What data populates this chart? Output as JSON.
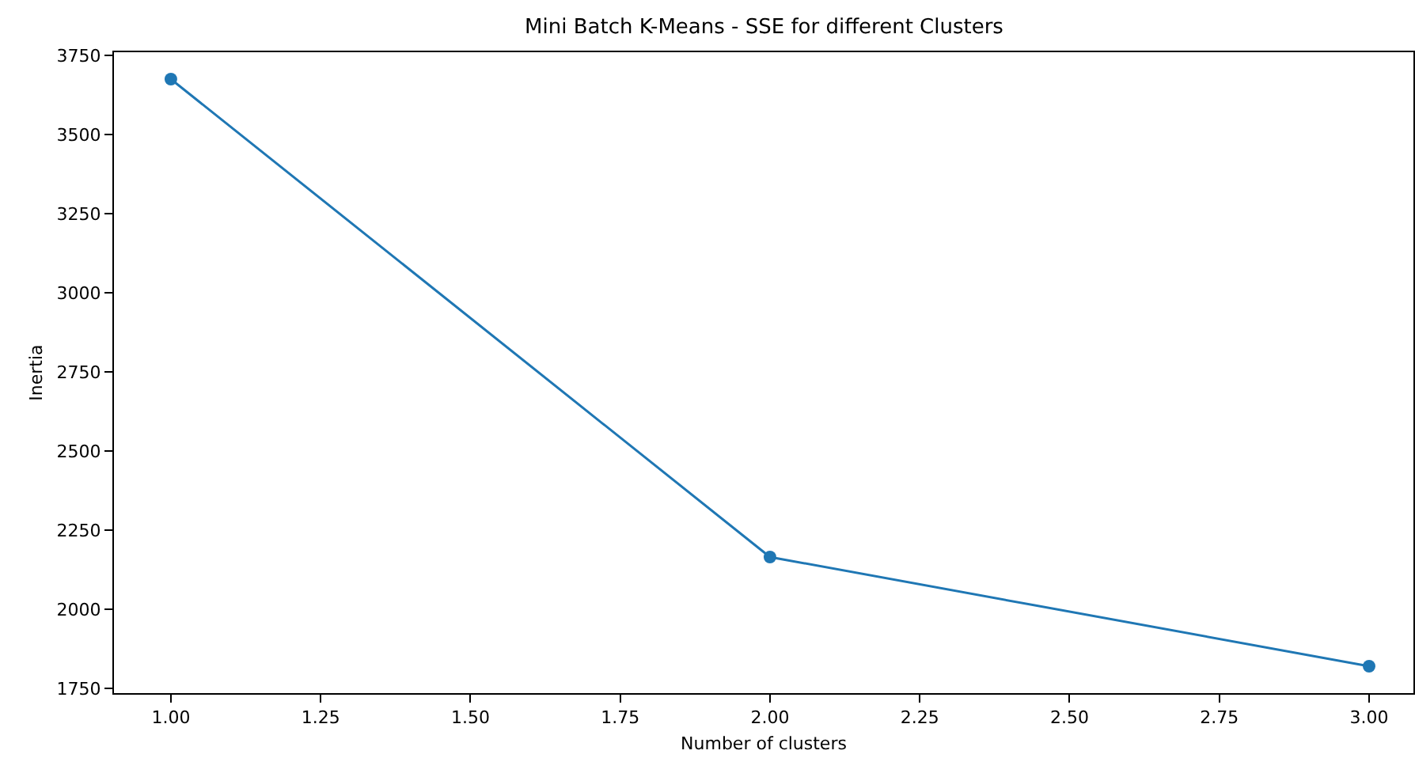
{
  "chart_data": {
    "type": "line",
    "title": "Mini Batch K-Means - SSE for different Clusters",
    "xlabel": "Number of clusters",
    "ylabel": "Inertia",
    "x": [
      1,
      2,
      3
    ],
    "series": [
      {
        "color": "#1f77b4",
        "values": [
          3675,
          2165,
          1820
        ]
      }
    ],
    "marker": "circle",
    "line_style": "solid",
    "xlim": [
      0.905,
      3.074
    ],
    "xticks": [
      {
        "value": 1,
        "label": "1.00"
      },
      {
        "value": 1.25,
        "label": "1.25"
      },
      {
        "value": 1.5,
        "label": "1.50"
      },
      {
        "value": 1.75,
        "label": "1.75"
      },
      {
        "value": 2,
        "label": "2.00"
      },
      {
        "value": 2.25,
        "label": "2.25"
      },
      {
        "value": 2.5,
        "label": "2.50"
      },
      {
        "value": 2.75,
        "label": "2.75"
      },
      {
        "value": 3,
        "label": "3.00"
      }
    ],
    "ylim": [
      1735,
      3760
    ],
    "yticks": [
      1750,
      2000,
      2250,
      2500,
      2750,
      3000,
      3250,
      3500,
      3750
    ]
  }
}
